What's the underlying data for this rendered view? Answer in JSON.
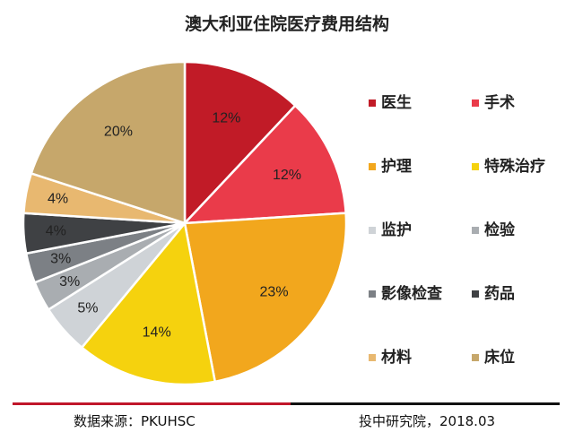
{
  "chart_data": {
    "type": "pie",
    "title": "澳大利亚住院医疗费用结构",
    "slices": [
      {
        "name": "医生",
        "value": 12,
        "label": "12%",
        "color": "#c11b27"
      },
      {
        "name": "手术",
        "value": 12,
        "label": "12%",
        "color": "#ea3b4a"
      },
      {
        "name": "护理",
        "value": 23,
        "label": "23%",
        "color": "#f2a71d"
      },
      {
        "name": "特殊治疗",
        "value": 14,
        "label": "14%",
        "color": "#f5d20e"
      },
      {
        "name": "监护",
        "value": 5,
        "label": "5%",
        "color": "#cfd3d7"
      },
      {
        "name": "检验",
        "value": 3,
        "label": "3%",
        "color": "#a9adb1"
      },
      {
        "name": "影像检查",
        "value": 3,
        "label": "3%",
        "color": "#7c8085"
      },
      {
        "name": "药品",
        "value": 4,
        "label": "4%",
        "color": "#3f4144"
      },
      {
        "name": "材料",
        "value": 4,
        "label": "4%",
        "color": "#e8b870"
      },
      {
        "name": "床位",
        "value": 20,
        "label": "20%",
        "color": "#c6a76b"
      }
    ],
    "legend_position": "right"
  },
  "footer": {
    "source": "数据来源：PKUHSC",
    "org": "投中研究院，2018.03"
  }
}
